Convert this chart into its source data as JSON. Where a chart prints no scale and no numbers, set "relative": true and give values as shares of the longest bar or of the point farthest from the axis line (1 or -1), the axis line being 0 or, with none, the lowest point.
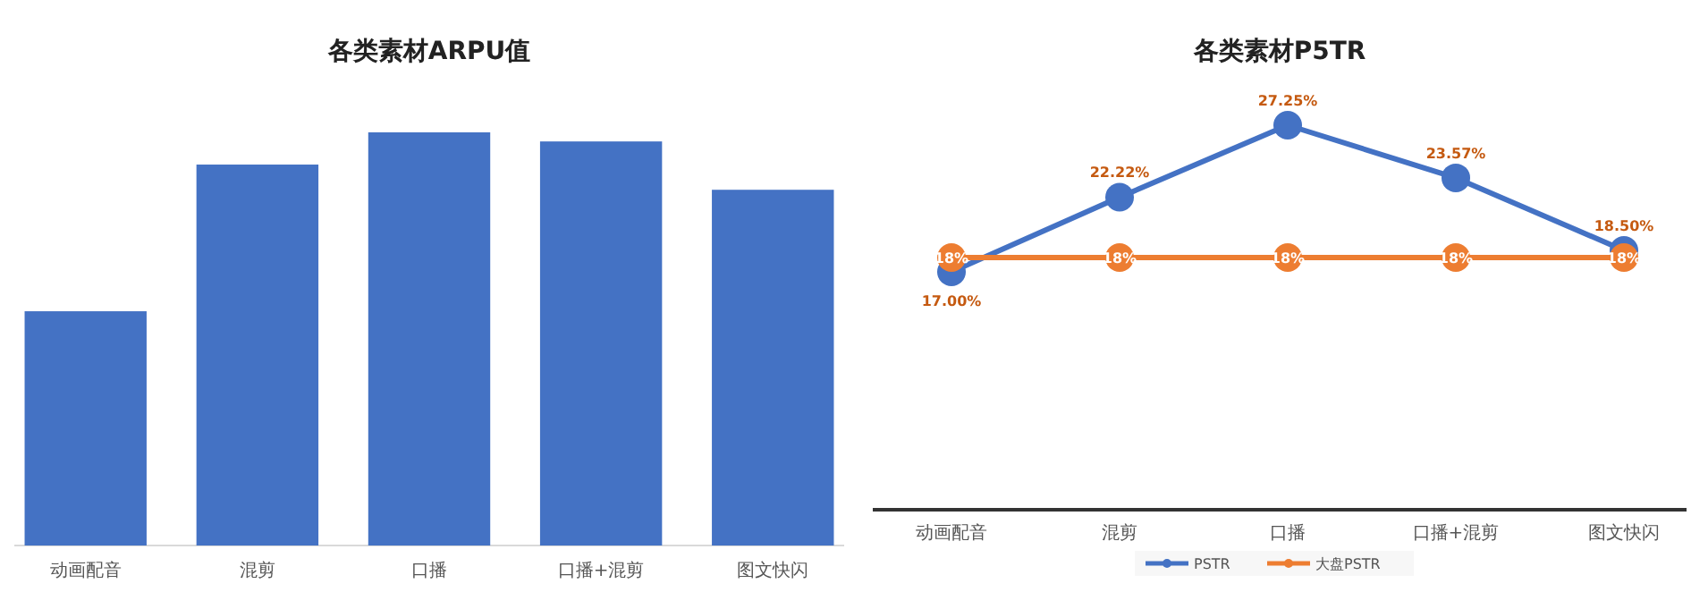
{
  "chart_data": [
    {
      "type": "bar",
      "title": "各类素材ARPU值",
      "relative": true,
      "categories": [
        "动画配音",
        "混剪",
        "口播",
        "口播+混剪",
        "图文快闪"
      ],
      "values": [
        0.567,
        0.922,
        1,
        0.978,
        0.861
      ],
      "color": "#4472c4"
    },
    {
      "type": "line",
      "title": "各类素材P5TR",
      "categories": [
        "动画配音",
        "混剪",
        "口播",
        "口播+混剪",
        "图文快闪"
      ],
      "marker": "circle",
      "legend": "bottom",
      "series": [
        {
          "name": "PSTR",
          "color": "#4472c4",
          "values": [
            17.0,
            22.22,
            27.25,
            23.57,
            18.5
          ],
          "value_labels": [
            "17.00%",
            "22.22%",
            "27.25%",
            "23.57%",
            "18.50%"
          ]
        },
        {
          "name": "大盘PSTR",
          "color": "#ed7d31",
          "values": [
            18,
            18,
            18,
            18,
            18
          ],
          "value_labels": [
            "18%",
            "18%",
            "18%",
            "18%",
            "18%"
          ]
        }
      ]
    }
  ]
}
